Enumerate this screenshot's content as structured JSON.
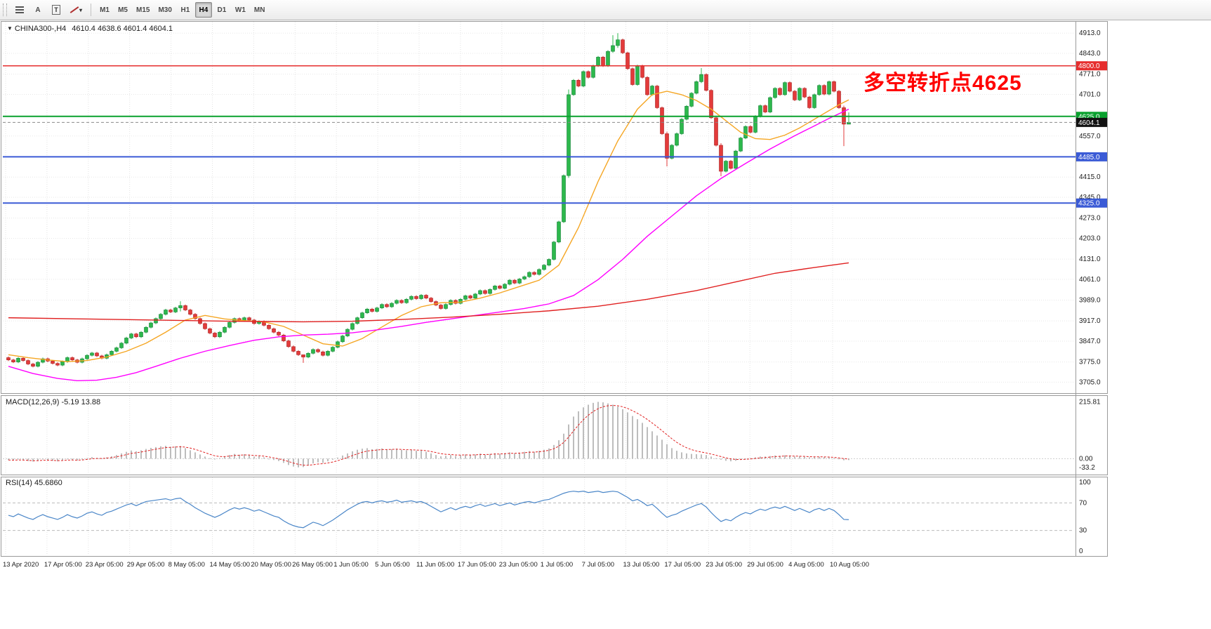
{
  "toolbar": {
    "tool_a_label": "A",
    "tool_t_label": "T",
    "timeframes": [
      "M1",
      "M5",
      "M15",
      "M30",
      "H1",
      "H4",
      "D1",
      "W1",
      "MN"
    ],
    "active_timeframe": "H4"
  },
  "chart": {
    "symbol_label": "CHINA300-,H4",
    "ohlc_line": "4610.4 4638.6 4601.4 4604.1",
    "annotation": {
      "text": "多空转折点4625",
      "color": "#ff0000"
    }
  },
  "chart_data": {
    "type": "candlestick",
    "symbol": "CHINA300-",
    "timeframe": "H4",
    "last_ohlc": {
      "open": 4610.4,
      "high": 4638.6,
      "low": 4601.4,
      "close": 4604.1
    },
    "x_labels": [
      "13 Apr 2020",
      "17 Apr 05:00",
      "23 Apr 05:00",
      "29 Apr 05:00",
      "8 May 05:00",
      "14 May 05:00",
      "20 May 05:00",
      "26 May 05:00",
      "1 Jun 05:00",
      "5 Jun 05:00",
      "11 Jun 05:00",
      "17 Jun 05:00",
      "23 Jun 05:00",
      "1 Jul 05:00",
      "7 Jul 05:00",
      "13 Jul 05:00",
      "17 Jul 05:00",
      "23 Jul 05:00",
      "29 Jul 05:00",
      "4 Aug 05:00",
      "10 Aug 05:00"
    ],
    "main": {
      "y_axis_labels": [
        "4913.0",
        "4843.0",
        "4771.0",
        "4701.0",
        "4557.0",
        "4415.0",
        "4345.0",
        "4273.0",
        "4203.0",
        "4131.0",
        "4061.0",
        "3989.0",
        "3917.0",
        "3847.0",
        "3775.0",
        "3705.0"
      ],
      "y_range": [
        3672,
        4950
      ],
      "up_color": "#2db84c",
      "down_color": "#e33b3b",
      "open_first": 3790,
      "closes": [
        3782,
        3775,
        3788,
        3780,
        3768,
        3760,
        3774,
        3786,
        3778,
        3770,
        3764,
        3776,
        3790,
        3782,
        3774,
        3786,
        3798,
        3806,
        3796,
        3788,
        3800,
        3812,
        3824,
        3840,
        3858,
        3872,
        3862,
        3878,
        3895,
        3910,
        3925,
        3940,
        3955,
        3948,
        3962,
        3970,
        3955,
        3940,
        3925,
        3908,
        3890,
        3875,
        3862,
        3878,
        3895,
        3912,
        3925,
        3918,
        3928,
        3920,
        3908,
        3915,
        3902,
        3890,
        3878,
        3868,
        3848,
        3828,
        3812,
        3800,
        3792,
        3805,
        3818,
        3810,
        3798,
        3812,
        3826,
        3845,
        3865,
        3888,
        3908,
        3928,
        3945,
        3958,
        3950,
        3962,
        3974,
        3966,
        3978,
        3988,
        3980,
        3992,
        4002,
        3994,
        4006,
        3996,
        3984,
        3972,
        3960,
        3974,
        3988,
        3978,
        3992,
        4004,
        3996,
        4010,
        4022,
        4012,
        4026,
        4038,
        4030,
        4044,
        4058,
        4048,
        4062,
        4070,
        4085,
        4078,
        4095,
        4110,
        4130,
        4190,
        4260,
        4420,
        4700,
        4750,
        4730,
        4780,
        4760,
        4800,
        4830,
        4800,
        4850,
        4870,
        4890,
        4845,
        4790,
        4735,
        4800,
        4760,
        4700,
        4730,
        4655,
        4565,
        4480,
        4525,
        4565,
        4615,
        4660,
        4705,
        4745,
        4770,
        4715,
        4620,
        4525,
        4435,
        4470,
        4445,
        4505,
        4550,
        4590,
        4570,
        4625,
        4662,
        4640,
        4690,
        4722,
        4700,
        4742,
        4712,
        4682,
        4722,
        4692,
        4655,
        4700,
        4732,
        4702,
        4745,
        4712,
        4655,
        4598,
        4604.1
      ],
      "wick_overrides": {
        "35": [
          3985,
          3950
        ],
        "60": [
          3800,
          3772
        ],
        "114": [
          4718,
          4412
        ],
        "123": [
          4906,
          4845
        ],
        "124": [
          4913,
          4862
        ],
        "134": [
          4572,
          4452
        ],
        "141": [
          4792,
          4740
        ],
        "145": [
          4532,
          4418
        ],
        "170": [
          4662,
          4522
        ],
        "171": [
          4638.6,
          4601.4
        ]
      },
      "hlines": [
        {
          "price": 4800.0,
          "label": "4800.0",
          "color": "#e62e2e",
          "badge": "#e62e2e",
          "width": 1.5,
          "style": "solid"
        },
        {
          "price": 4625.0,
          "label": "4625.0",
          "color": "#0aa12e",
          "badge": "#0aa12e",
          "width": 2,
          "style": "solid"
        },
        {
          "price": 4604.1,
          "label": "4604.1",
          "color": "#8a8a8a",
          "badge": "#111111",
          "width": 1,
          "style": "current"
        },
        {
          "price": 4485.0,
          "label": "4485.0",
          "color": "#3b5bd6",
          "badge": "#3b5bd6",
          "width": 2,
          "style": "solid"
        },
        {
          "price": 4325.0,
          "label": "4325.0",
          "color": "#3b5bd6",
          "badge": "#3b5bd6",
          "width": 2,
          "style": "solid"
        }
      ],
      "ma_lines": [
        {
          "name": "fast-ma-line",
          "color": "#f5a623",
          "points": [
            [
              0,
              3800
            ],
            [
              4,
              3790
            ],
            [
              8,
              3782
            ],
            [
              12,
              3776
            ],
            [
              16,
              3780
            ],
            [
              20,
              3792
            ],
            [
              24,
              3812
            ],
            [
              28,
              3840
            ],
            [
              32,
              3878
            ],
            [
              36,
              3920
            ],
            [
              40,
              3936
            ],
            [
              44,
              3924
            ],
            [
              48,
              3918
            ],
            [
              52,
              3914
            ],
            [
              56,
              3898
            ],
            [
              60,
              3868
            ],
            [
              64,
              3838
            ],
            [
              68,
              3830
            ],
            [
              72,
              3856
            ],
            [
              76,
              3896
            ],
            [
              80,
              3936
            ],
            [
              84,
              3966
            ],
            [
              88,
              3980
            ],
            [
              92,
              3982
            ],
            [
              96,
              3996
            ],
            [
              100,
              4014
            ],
            [
              104,
              4036
            ],
            [
              108,
              4058
            ],
            [
              112,
              4110
            ],
            [
              116,
              4240
            ],
            [
              120,
              4400
            ],
            [
              124,
              4540
            ],
            [
              128,
              4650
            ],
            [
              131,
              4700
            ],
            [
              134,
              4712
            ],
            [
              137,
              4700
            ],
            [
              140,
              4680
            ],
            [
              143,
              4650
            ],
            [
              146,
              4610
            ],
            [
              149,
              4570
            ],
            [
              152,
              4548
            ],
            [
              155,
              4545
            ],
            [
              158,
              4560
            ],
            [
              161,
              4585
            ],
            [
              164,
              4615
            ],
            [
              167,
              4645
            ],
            [
              169,
              4665
            ],
            [
              171,
              4682
            ]
          ]
        },
        {
          "name": "mid-ma-line",
          "color": "#ff00ff",
          "points": [
            [
              0,
              3760
            ],
            [
              5,
              3735
            ],
            [
              10,
              3718
            ],
            [
              14,
              3710
            ],
            [
              18,
              3712
            ],
            [
              22,
              3722
            ],
            [
              26,
              3738
            ],
            [
              30,
              3760
            ],
            [
              35,
              3788
            ],
            [
              40,
              3812
            ],
            [
              45,
              3832
            ],
            [
              50,
              3850
            ],
            [
              55,
              3862
            ],
            [
              60,
              3868
            ],
            [
              65,
              3871
            ],
            [
              70,
              3876
            ],
            [
              75,
              3886
            ],
            [
              80,
              3898
            ],
            [
              85,
              3912
            ],
            [
              90,
              3924
            ],
            [
              95,
              3936
            ],
            [
              100,
              3948
            ],
            [
              105,
              3960
            ],
            [
              110,
              3976
            ],
            [
              115,
              4005
            ],
            [
              120,
              4060
            ],
            [
              125,
              4130
            ],
            [
              130,
              4210
            ],
            [
              135,
              4280
            ],
            [
              140,
              4350
            ],
            [
              145,
              4410
            ],
            [
              150,
              4462
            ],
            [
              155,
              4512
            ],
            [
              160,
              4558
            ],
            [
              164,
              4592
            ],
            [
              167,
              4618
            ],
            [
              169,
              4634
            ],
            [
              171,
              4650
            ]
          ]
        },
        {
          "name": "slow-ma-line",
          "color": "#e02020",
          "points": [
            [
              0,
              3928
            ],
            [
              15,
              3924
            ],
            [
              30,
              3920
            ],
            [
              45,
              3916
            ],
            [
              60,
              3914
            ],
            [
              70,
              3916
            ],
            [
              80,
              3922
            ],
            [
              90,
              3930
            ],
            [
              100,
              3940
            ],
            [
              110,
              3952
            ],
            [
              120,
              3968
            ],
            [
              130,
              3992
            ],
            [
              140,
              4022
            ],
            [
              148,
              4052
            ],
            [
              156,
              4082
            ],
            [
              164,
              4102
            ],
            [
              171,
              4118
            ]
          ]
        }
      ]
    },
    "macd": {
      "label": "MACD(12,26,9) -5.19 13.88",
      "axis_labels": [
        "215.81",
        "0.00",
        "-33.2"
      ],
      "v_range": [
        -55,
        233
      ],
      "histogram_color": "#bdbdbd",
      "signal_color": "#e02020",
      "values": [
        -5,
        -7,
        -3,
        -6,
        -9,
        -11,
        -7,
        -3,
        -5,
        -8,
        -10,
        -6,
        -2,
        -4,
        -7,
        -3,
        2,
        6,
        3,
        1,
        5,
        9,
        14,
        20,
        26,
        31,
        28,
        32,
        37,
        41,
        44,
        47,
        49,
        45,
        47,
        48,
        40,
        32,
        24,
        16,
        8,
        2,
        -3,
        2,
        8,
        14,
        18,
        15,
        17,
        13,
        8,
        10,
        5,
        0,
        -5,
        -9,
        -16,
        -24,
        -30,
        -33,
        -32,
        -26,
        -18,
        -14,
        -16,
        -10,
        -4,
        4,
        12,
        20,
        28,
        34,
        38,
        40,
        36,
        37,
        39,
        35,
        36,
        38,
        33,
        32,
        33,
        30,
        31,
        26,
        20,
        14,
        9,
        11,
        14,
        10,
        13,
        16,
        13,
        16,
        19,
        15,
        18,
        21,
        18,
        21,
        24,
        20,
        23,
        26,
        29,
        26,
        30,
        34,
        39,
        52,
        70,
        95,
        130,
        160,
        180,
        195,
        205,
        212,
        215.8,
        214,
        210,
        205,
        198,
        188,
        176,
        162,
        150,
        136,
        120,
        104,
        88,
        72,
        55,
        40,
        30,
        24,
        20,
        18,
        17,
        16,
        14,
        8,
        2,
        -4,
        -8,
        -10,
        -8,
        -4,
        0,
        2,
        5,
        8,
        8,
        10,
        12,
        11,
        13,
        11,
        8,
        9,
        7,
        5,
        6,
        7,
        6,
        5,
        2,
        -2,
        -6,
        -5.19
      ]
    },
    "rsi": {
      "label": "RSI(14) 45.6860",
      "axis_labels": [
        "100",
        "70",
        "30",
        "0"
      ],
      "levels": [
        70,
        30
      ],
      "v_range": [
        -5,
        105
      ],
      "line_color": "#4a86c8",
      "values": [
        52,
        50,
        54,
        51,
        48,
        46,
        50,
        53,
        50,
        48,
        46,
        49,
        53,
        50,
        48,
        51,
        55,
        57,
        54,
        52,
        56,
        58,
        61,
        64,
        67,
        69,
        66,
        69,
        72,
        73,
        74,
        75,
        76,
        74,
        76,
        77,
        72,
        68,
        63,
        59,
        55,
        52,
        49,
        52,
        56,
        60,
        63,
        61,
        63,
        61,
        58,
        60,
        57,
        54,
        51,
        49,
        44,
        40,
        37,
        35,
        34,
        38,
        42,
        40,
        37,
        41,
        45,
        50,
        55,
        60,
        64,
        68,
        71,
        72,
        70,
        72,
        73,
        71,
        72,
        74,
        71,
        72,
        73,
        71,
        72,
        69,
        65,
        61,
        57,
        60,
        63,
        60,
        63,
        65,
        63,
        66,
        68,
        65,
        67,
        69,
        66,
        68,
        70,
        67,
        69,
        71,
        72,
        70,
        72,
        74,
        75,
        78,
        81,
        84,
        86,
        87,
        86,
        87,
        85,
        86,
        87,
        85,
        86,
        87,
        86,
        82,
        78,
        73,
        75,
        71,
        66,
        68,
        62,
        55,
        49,
        52,
        54,
        58,
        61,
        64,
        67,
        69,
        64,
        56,
        49,
        43,
        46,
        44,
        49,
        53,
        56,
        54,
        58,
        61,
        59,
        62,
        64,
        62,
        65,
        62,
        59,
        62,
        59,
        56,
        60,
        62,
        59,
        62,
        59,
        53,
        46,
        45.7
      ]
    }
  }
}
